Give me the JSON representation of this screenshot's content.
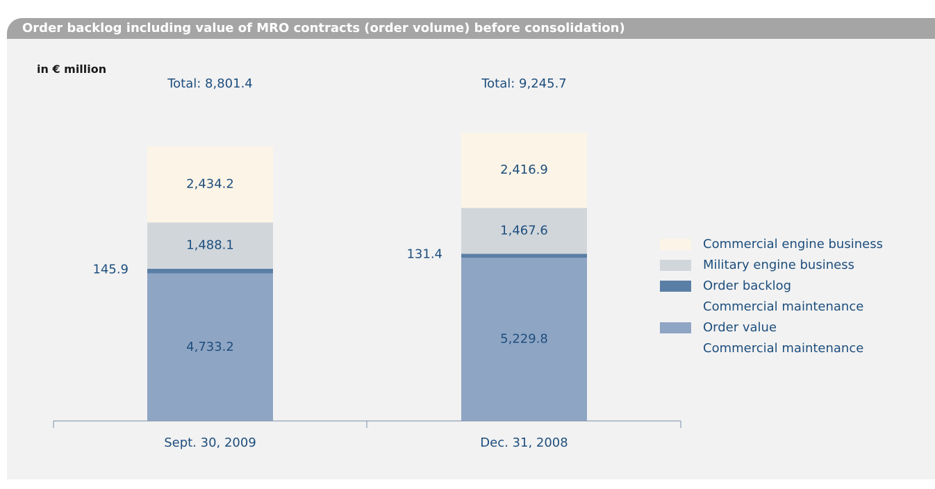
{
  "chart_data": {
    "type": "stacked-bar",
    "title": "Order backlog including value of MRO contracts (order volume) before consolidation)",
    "subtitle": "in € million",
    "categories": [
      "Sept. 30, 2009",
      "Dec. 31, 2008"
    ],
    "total_labels": [
      "Total: 8,801.4",
      "Total: 9,245.7"
    ],
    "series": [
      {
        "name": "Order value\nCommercial maintenance",
        "color": "#8fa5c4",
        "values": [
          4733.2,
          5229.8
        ],
        "value_labels": [
          "4,733.2",
          "5,229.8"
        ]
      },
      {
        "name": "Order backlog\nCommercial maintenance",
        "color": "#5a7fa6",
        "values": [
          145.9,
          131.4
        ]
      },
      {
        "name": "Military engine business",
        "color": "#d1d6db",
        "values": [
          1488.1,
          1467.6
        ],
        "value_labels": [
          "1,488.1",
          "1,467.6"
        ]
      },
      {
        "name": "Commercial engine business",
        "color": "#fcf4e6",
        "values": [
          2434.2,
          2416.9
        ],
        "value_labels": [
          "2,434.2",
          "2,416.9"
        ]
      }
    ]
  }
}
